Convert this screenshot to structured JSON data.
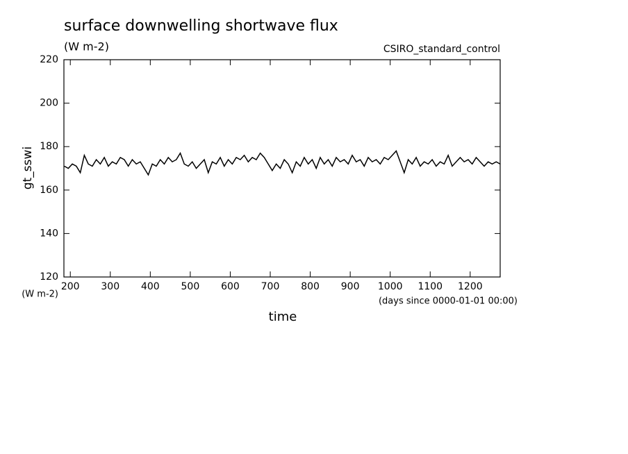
{
  "chart_data": {
    "type": "line",
    "title": "surface downwelling shortwave flux",
    "subtitle": "(W m-2)",
    "annotation": "CSIRO_standard_control",
    "ylabel": "gt_sswi",
    "xlabel": "time",
    "y_units": "(W m-2)",
    "x_units": "(days since 0000-01-01 00:00)",
    "xlim": [
      184,
      1275
    ],
    "ylim": [
      120,
      220
    ],
    "xticks": [
      200,
      300,
      400,
      500,
      600,
      700,
      800,
      900,
      1000,
      1100,
      1200
    ],
    "yticks": [
      120,
      140,
      160,
      180,
      200,
      220
    ],
    "x": [
      185,
      195,
      205,
      215,
      225,
      235,
      245,
      255,
      265,
      275,
      285,
      295,
      305,
      315,
      325,
      335,
      345,
      355,
      365,
      375,
      385,
      395,
      405,
      415,
      425,
      435,
      445,
      455,
      465,
      475,
      485,
      495,
      505,
      515,
      525,
      535,
      545,
      555,
      565,
      575,
      585,
      595,
      605,
      615,
      625,
      635,
      645,
      655,
      665,
      675,
      685,
      695,
      705,
      715,
      725,
      735,
      745,
      755,
      765,
      775,
      785,
      795,
      805,
      815,
      825,
      835,
      845,
      855,
      865,
      875,
      885,
      895,
      905,
      915,
      925,
      935,
      945,
      955,
      965,
      975,
      985,
      995,
      1005,
      1015,
      1025,
      1035,
      1045,
      1055,
      1065,
      1075,
      1085,
      1095,
      1105,
      1115,
      1125,
      1135,
      1145,
      1155,
      1165,
      1175,
      1185,
      1195,
      1205,
      1215,
      1225,
      1235,
      1245,
      1255,
      1265,
      1275
    ],
    "series": [
      {
        "name": "gt_sswi",
        "color": "#000000",
        "values": [
          171,
          170,
          172,
          171,
          168,
          176,
          172,
          171,
          174,
          172,
          175,
          171,
          173,
          172,
          175,
          174,
          171,
          174,
          172,
          173,
          170,
          167,
          172,
          171,
          174,
          172,
          175,
          173,
          174,
          177,
          172,
          171,
          173,
          170,
          172,
          174,
          168,
          173,
          172,
          175,
          171,
          174,
          172,
          175,
          174,
          176,
          173,
          175,
          174,
          177,
          175,
          172,
          169,
          172,
          170,
          174,
          172,
          168,
          173,
          171,
          175,
          172,
          174,
          170,
          175,
          172,
          174,
          171,
          175,
          173,
          174,
          172,
          176,
          173,
          174,
          171,
          175,
          173,
          174,
          172,
          175,
          174,
          176,
          178,
          173,
          168,
          174,
          172,
          175,
          171,
          173,
          172,
          174,
          171,
          173,
          172,
          176,
          171,
          173,
          175,
          173,
          174,
          172,
          175,
          173,
          171,
          173,
          172,
          173,
          172
        ]
      }
    ]
  }
}
